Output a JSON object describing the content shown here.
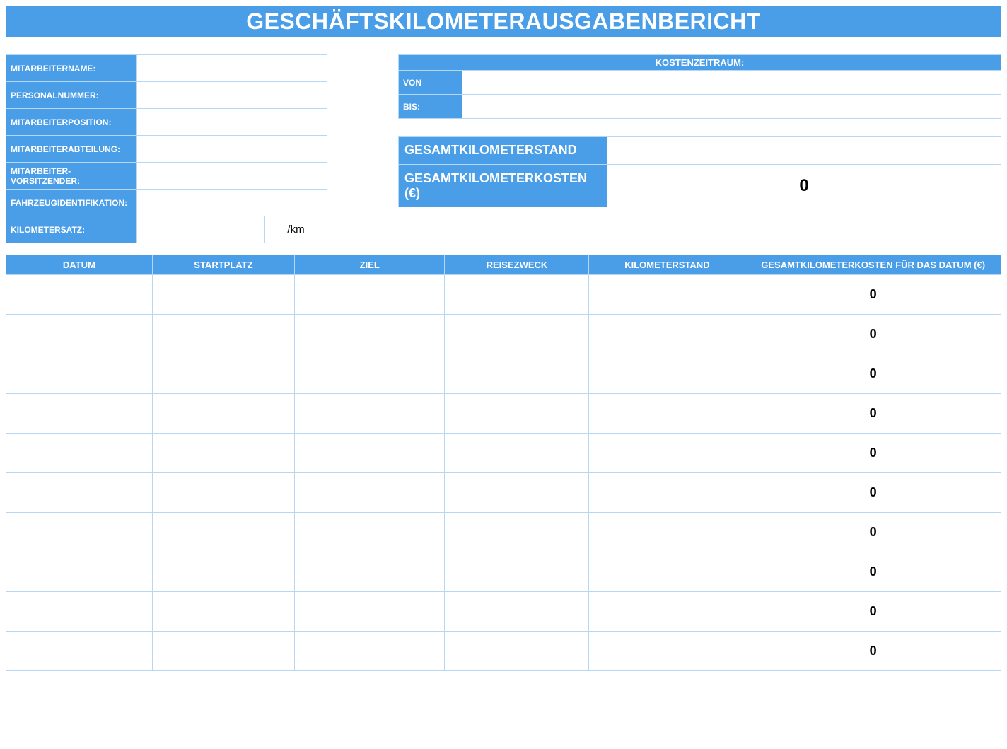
{
  "colors": {
    "primary": "#4a9ee8",
    "border": "#b3d7f5",
    "text_on_primary": "#ffffff",
    "text": "#000000",
    "background": "#ffffff"
  },
  "title": "GESCHÄFTSKILOMETERAUSGABENBERICHT",
  "employee": {
    "fields": [
      {
        "label": "MITARBEITERNAME:",
        "value": ""
      },
      {
        "label": "PERSONALNUMMER:",
        "value": ""
      },
      {
        "label": "MITARBEITERPOSITION:",
        "value": ""
      },
      {
        "label": "MITARBEITERABTEILUNG:",
        "value": ""
      },
      {
        "label": "MITARBEITER-VORSITZENDER:",
        "value": ""
      },
      {
        "label": "FAHRZEUGIDENTIFIKATION:",
        "value": ""
      }
    ],
    "rate_label": "KILOMETERSATZ:",
    "rate_value": "",
    "rate_unit": "/km"
  },
  "period": {
    "header": "KOSTENZEITRAUM:",
    "from_label": "VON",
    "from_value": "",
    "to_label": "BIS:",
    "to_value": ""
  },
  "totals": {
    "km_label": "GESAMTKILOMETERSTAND",
    "km_value": "",
    "cost_label": "GESAMTKILOMETERKOSTEN (€)",
    "cost_value": "0"
  },
  "mainTable": {
    "columns": [
      "DATUM",
      "STARTPLATZ",
      "ZIEL",
      "REISEZWECK",
      "KILOMETERSTAND",
      "GESAMTKILOMETERKOSTEN FÜR DAS DATUM (€)"
    ],
    "rows": [
      {
        "datum": "",
        "start": "",
        "ziel": "",
        "zweck": "",
        "km": "",
        "cost": "0"
      },
      {
        "datum": "",
        "start": "",
        "ziel": "",
        "zweck": "",
        "km": "",
        "cost": "0"
      },
      {
        "datum": "",
        "start": "",
        "ziel": "",
        "zweck": "",
        "km": "",
        "cost": "0"
      },
      {
        "datum": "",
        "start": "",
        "ziel": "",
        "zweck": "",
        "km": "",
        "cost": "0"
      },
      {
        "datum": "",
        "start": "",
        "ziel": "",
        "zweck": "",
        "km": "",
        "cost": "0"
      },
      {
        "datum": "",
        "start": "",
        "ziel": "",
        "zweck": "",
        "km": "",
        "cost": "0"
      },
      {
        "datum": "",
        "start": "",
        "ziel": "",
        "zweck": "",
        "km": "",
        "cost": "0"
      },
      {
        "datum": "",
        "start": "",
        "ziel": "",
        "zweck": "",
        "km": "",
        "cost": "0"
      },
      {
        "datum": "",
        "start": "",
        "ziel": "",
        "zweck": "",
        "km": "",
        "cost": "0"
      },
      {
        "datum": "",
        "start": "",
        "ziel": "",
        "zweck": "",
        "km": "",
        "cost": "0"
      }
    ]
  }
}
